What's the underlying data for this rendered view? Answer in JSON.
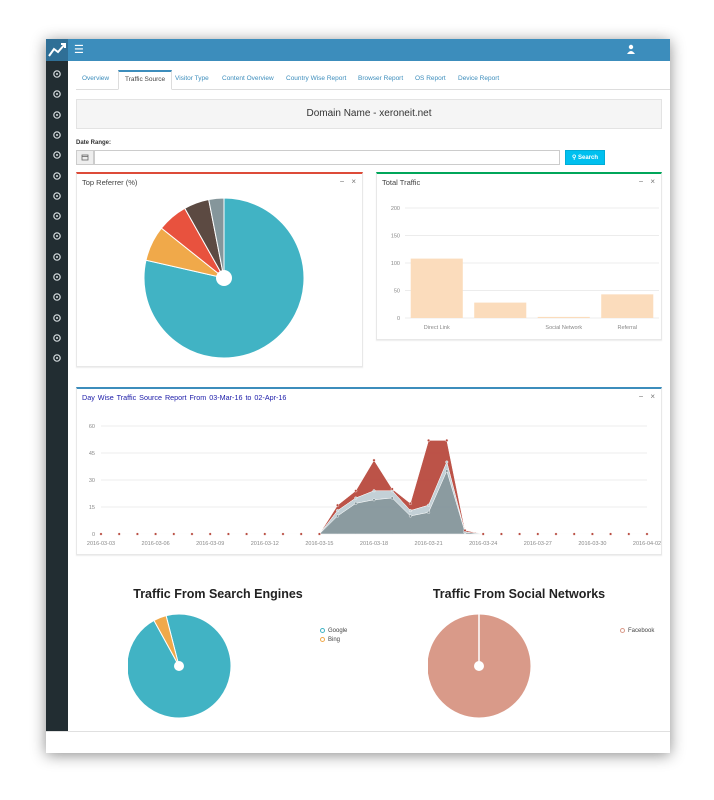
{
  "header": {
    "logo_icon": "trend-line-icon",
    "menu_icon": "hamburger-menu-icon",
    "user_icon": "user-icon"
  },
  "sidebar": {
    "icons": [
      "add-user-icon",
      "line-chart-icon",
      "bar-chart-icon",
      "share-icon",
      "trophy-icon",
      "table-icon",
      "map-marker-icon",
      "anchor-icon",
      "tag-icon",
      "link-icon",
      "shield-icon",
      "google-icon",
      "gear-icon",
      "external-link-icon",
      "plug-icon"
    ]
  },
  "tabs": [
    {
      "label": "Overview"
    },
    {
      "label": "Traffic Source"
    },
    {
      "label": "Visitor Type"
    },
    {
      "label": "Content Overview"
    },
    {
      "label": "Country Wise Report"
    },
    {
      "label": "Browser Report"
    },
    {
      "label": "OS Report"
    },
    {
      "label": "Device Report"
    }
  ],
  "domain": {
    "text": "Domain Name - xeroneit.net"
  },
  "date_range": {
    "label": "Date Range:",
    "value": "",
    "search_label": "Search",
    "calendar_icon": "calendar-icon",
    "search_icon": "search-icon"
  },
  "top_referrer": {
    "title": "Top Referrer (%)",
    "colors": {
      "teal": "#41b3c4",
      "orange": "#f0a94a",
      "red": "#e8523e",
      "brown": "#5c4a42",
      "gray": "#85969b"
    }
  },
  "total_traffic": {
    "title": "Total Traffic",
    "bar_color": "#fbdcbc"
  },
  "day_wise": {
    "title": "Day  Wise  Traffic  Source  Report  From  03-Mar-16  to  02-Apr-16"
  },
  "search_engines": {
    "title": "Traffic From Search Engines",
    "legend": [
      {
        "label": "Google",
        "color": "#41b3c4"
      },
      {
        "label": "Bing",
        "color": "#f0a94a"
      }
    ]
  },
  "social_networks": {
    "title": "Traffic From Social Networks",
    "legend": [
      {
        "label": "Facebook",
        "color": "#d99a89"
      }
    ]
  },
  "chart_data": [
    {
      "type": "pie",
      "slices": [
        {
          "color": "#41b3c4",
          "value": 77
        },
        {
          "color": "#f0a94a",
          "value": 7
        },
        {
          "color": "#e8523e",
          "value": 6
        },
        {
          "color": "#5c4a42",
          "value": 5
        },
        {
          "color": "#85969b",
          "value": 3
        }
      ]
    },
    {
      "type": "bar",
      "categories": [
        "Direct Link",
        "",
        "Social Network",
        "Referral"
      ],
      "values": [
        108,
        28,
        2,
        43
      ],
      "ylim": [
        0,
        200
      ],
      "yticks": [
        0,
        50,
        100,
        150,
        200
      ]
    },
    {
      "type": "area",
      "x": [
        "2016-03-03",
        "2016-03-04",
        "2016-03-05",
        "2016-03-06",
        "2016-03-07",
        "2016-03-08",
        "2016-03-09",
        "2016-03-10",
        "2016-03-11",
        "2016-03-12",
        "2016-03-13",
        "2016-03-14",
        "2016-03-15",
        "2016-03-16",
        "2016-03-17",
        "2016-03-18",
        "2016-03-19",
        "2016-03-20",
        "2016-03-21",
        "2016-03-22",
        "2016-03-23",
        "2016-03-24",
        "2016-03-25",
        "2016-03-26",
        "2016-03-27",
        "2016-03-28",
        "2016-03-29",
        "2016-03-30",
        "2016-03-31",
        "2016-04-01",
        "2016-04-02"
      ],
      "xticks": [
        "2016-03-03",
        "2016-03-06",
        "2016-03-09",
        "2016-03-12",
        "2016-03-15",
        "2016-03-18",
        "2016-03-21",
        "2016-03-24",
        "2016-03-27",
        "2016-03-30",
        "2016-04-02"
      ],
      "series": [
        {
          "color": "#85969b",
          "values": [
            0,
            0,
            0,
            0,
            0,
            0,
            0,
            0,
            0,
            0,
            0,
            0,
            0,
            10,
            17,
            19,
            20,
            10,
            12,
            35,
            1,
            0,
            0,
            0,
            0,
            0,
            0,
            0,
            0,
            0,
            0
          ]
        },
        {
          "color": "#c0ced4",
          "values": [
            0,
            0,
            0,
            0,
            0,
            0,
            0,
            0,
            0,
            0,
            0,
            0,
            0,
            3,
            3,
            5,
            4,
            3,
            4,
            5,
            0,
            0,
            0,
            0,
            0,
            0,
            0,
            0,
            0,
            0,
            0
          ]
        },
        {
          "color": "#b84a3e",
          "values": [
            0,
            0,
            0,
            0,
            0,
            0,
            0,
            0,
            0,
            0,
            0,
            0,
            0,
            3,
            4,
            17,
            1,
            4,
            36,
            12,
            1,
            0,
            0,
            0,
            0,
            0,
            0,
            0,
            0,
            0,
            0
          ]
        }
      ],
      "ylim": [
        0,
        60
      ],
      "yticks": [
        0,
        15,
        30,
        45,
        60
      ]
    },
    {
      "type": "pie",
      "slices": [
        {
          "color": "#41b3c4",
          "value": 96
        },
        {
          "color": "#f0a94a",
          "value": 4
        }
      ]
    },
    {
      "type": "pie",
      "slices": [
        {
          "color": "#d99a89",
          "value": 100
        }
      ]
    }
  ]
}
